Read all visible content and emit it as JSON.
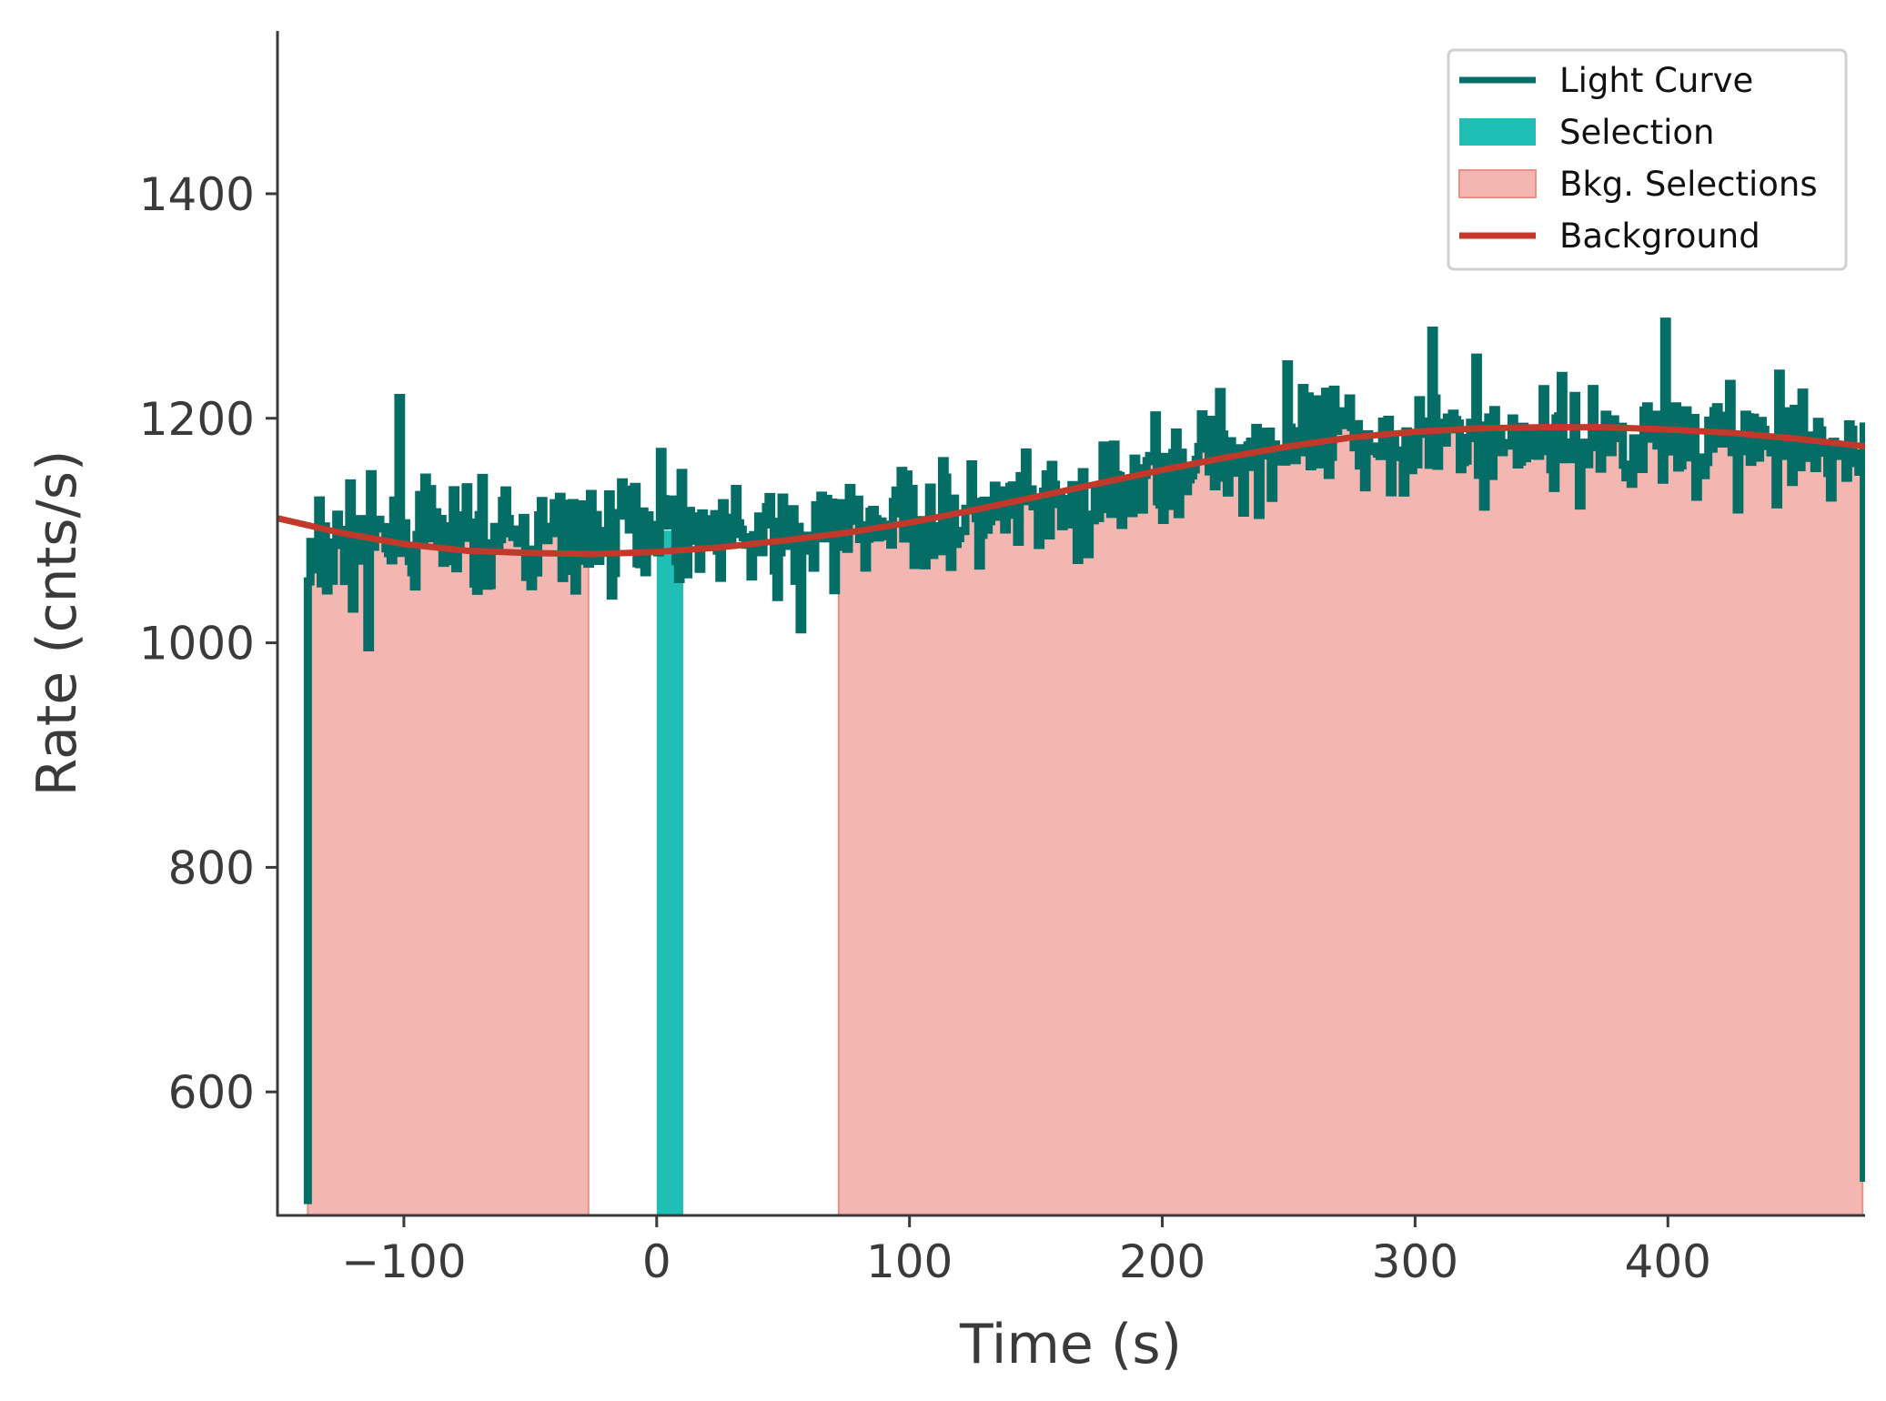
{
  "chart_data": {
    "type": "line",
    "title": "",
    "xlabel": "Time (s)",
    "ylabel": "Rate (cnts/s)",
    "xlim": [
      -150,
      478
    ],
    "ylim": [
      490,
      1545
    ],
    "grid": false,
    "legend_location": "top-right",
    "x_ticks": [
      -100,
      0,
      100,
      200,
      300,
      400
    ],
    "x_tick_labels": [
      "−100",
      "0",
      "100",
      "200",
      "300",
      "400"
    ],
    "y_ticks": [
      600,
      800,
      1000,
      1200,
      1400
    ],
    "y_tick_labels": [
      "600",
      "800",
      "1000",
      "1200",
      "1400"
    ],
    "colors": {
      "light_curve": "#046e66",
      "selection": "#1fbfb5",
      "bkg_selection": "#f4b6b1",
      "bkg_selection_edge": "#ec8f86",
      "background": "#c0392b",
      "axis": "#3a3a3a"
    },
    "series": [
      {
        "name": "Light Curve",
        "type": "step",
        "dx": 1.024,
        "x_start": -138.0,
        "x_end": 477.5,
        "pre_value": 500,
        "post_value": 520,
        "anchors_x": [
          -138,
          -125,
          -100,
          -75,
          -50,
          -25,
          0,
          25,
          50,
          75,
          100,
          125,
          150,
          175,
          200,
          225,
          250,
          275,
          300,
          325,
          350,
          375,
          400,
          425,
          450,
          477
        ],
        "anchors_y": [
          1065,
          1090,
          1088,
          1095,
          1090,
          1095,
          1110,
          1098,
          1088,
          1100,
          1112,
          1108,
          1118,
          1118,
          1160,
          1170,
          1175,
          1180,
          1185,
          1178,
          1182,
          1180,
          1185,
          1180,
          1172,
          1168
        ],
        "noise_sd": 32,
        "seed": 7,
        "highlights": [
          [
            -102,
            1218
          ],
          [
            1,
            1170
          ],
          [
            306,
            1278
          ],
          [
            399,
            1286
          ],
          [
            -114,
            996
          ],
          [
            57,
            1012
          ],
          [
            324,
            1254
          ],
          [
            249,
            1248
          ]
        ]
      },
      {
        "name": "Selection",
        "type": "band",
        "x_range": [
          0,
          10.5
        ],
        "values": [
          490,
          1100
        ]
      },
      {
        "name": "Bkg. Selections",
        "type": "band",
        "intervals": [
          [
            -138,
            -27
          ],
          [
            72,
            477
          ]
        ],
        "values": "light-curve-clipped"
      },
      {
        "name": "Background",
        "type": "line",
        "x": [
          -150,
          -125,
          -100,
          -75,
          -50,
          -25,
          0,
          25,
          50,
          75,
          100,
          125,
          150,
          175,
          200,
          225,
          250,
          275,
          300,
          325,
          350,
          375,
          400,
          425,
          450,
          478
        ],
        "values": [
          1111,
          1098,
          1088,
          1082,
          1080,
          1079,
          1081,
          1085,
          1091,
          1098,
          1107,
          1118,
          1130,
          1142,
          1154,
          1165,
          1175,
          1183,
          1188,
          1191,
          1192,
          1192,
          1190,
          1187,
          1182,
          1175
        ]
      }
    ],
    "legend": [
      {
        "label": "Light Curve",
        "kind": "line",
        "color": "#046e66"
      },
      {
        "label": "Selection",
        "kind": "patch",
        "color": "#1fbfb5"
      },
      {
        "label": "Bkg. Selections",
        "kind": "patch",
        "color": "#f4b6b1"
      },
      {
        "label": "Background",
        "kind": "line",
        "color": "#c0392b"
      }
    ]
  }
}
